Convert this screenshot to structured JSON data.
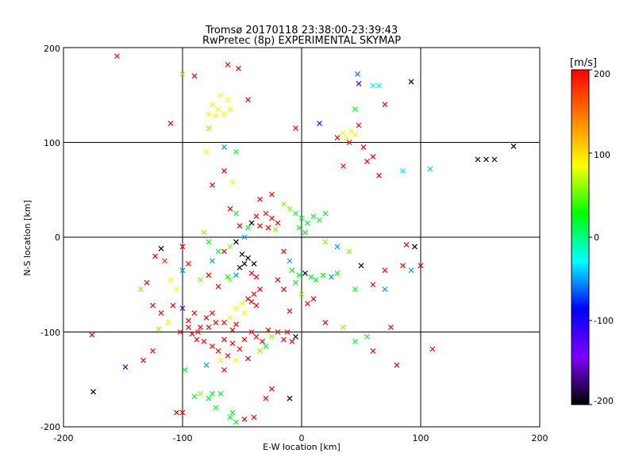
{
  "chart_data": {
    "type": "scatter",
    "title": "Tromsø 20170118 23:38:00-23:39:43",
    "subtitle": "RwPretec (8p) EXPERIMENTAL SKYMAP",
    "xlabel": "E-W location [km]",
    "ylabel": "N-S location [km]",
    "xlim": [
      -200,
      200
    ],
    "ylim": [
      -200,
      200
    ],
    "xticks": [
      "-200",
      "-100",
      "0",
      "100",
      "200"
    ],
    "yticks": [
      "-200",
      "-100",
      "0",
      "100",
      "200"
    ],
    "grid": true,
    "colorbar": {
      "label": "[m/s]",
      "range": [
        -200,
        200
      ],
      "ticks": [
        "200",
        "100",
        "0",
        "-100",
        "-200"
      ],
      "colors": [
        "#000000",
        "#7f00ff",
        "#0000ff",
        "#00ffff",
        "#00ff00",
        "#ffff00",
        "#ff8000",
        "#ff0000"
      ]
    },
    "points": [
      [
        -155,
        191,
        200,
        "x"
      ],
      [
        -118,
        -12,
        -200,
        "x"
      ],
      [
        -175,
        -163,
        -200,
        "x"
      ],
      [
        -176,
        -103,
        200,
        "x"
      ],
      [
        -148,
        -137,
        -120,
        "x"
      ],
      [
        -133,
        -130,
        200,
        "x"
      ],
      [
        -125,
        -120,
        200,
        "x"
      ],
      [
        -123,
        -20,
        200,
        "x"
      ],
      [
        -120,
        -97,
        60,
        "x"
      ],
      [
        -115,
        -25,
        180,
        "x"
      ],
      [
        -105,
        -185,
        200,
        "x"
      ],
      [
        -100,
        -185,
        200,
        "x"
      ],
      [
        -98,
        -140,
        20,
        "x"
      ],
      [
        -90,
        -168,
        20,
        "x"
      ],
      [
        -87,
        -100,
        200,
        "x"
      ],
      [
        -85,
        -165,
        60,
        "x"
      ],
      [
        -80,
        -135,
        -50,
        "x"
      ],
      [
        -78,
        -170,
        20,
        "x"
      ],
      [
        -75,
        -165,
        20,
        "x"
      ],
      [
        -72,
        -180,
        20,
        "x"
      ],
      [
        -68,
        -165,
        20,
        "x"
      ],
      [
        -65,
        -140,
        200,
        "x"
      ],
      [
        -60,
        -190,
        20,
        "x"
      ],
      [
        -58,
        -185,
        20,
        "x"
      ],
      [
        -55,
        -195,
        20,
        "x"
      ],
      [
        -48,
        -192,
        200,
        "x"
      ],
      [
        -40,
        -190,
        200,
        "x"
      ],
      [
        -30,
        -170,
        200,
        "x"
      ],
      [
        -25,
        -160,
        200,
        "x"
      ],
      [
        -10,
        -170,
        -200,
        "x"
      ],
      [
        -100,
        172,
        60,
        "x"
      ],
      [
        -90,
        170,
        200,
        "x"
      ],
      [
        -70,
        135,
        90,
        "x"
      ],
      [
        -75,
        140,
        90,
        "x"
      ],
      [
        -65,
        130,
        90,
        "x"
      ],
      [
        -60,
        135,
        90,
        "x"
      ],
      [
        -62,
        145,
        90,
        "x"
      ],
      [
        -72,
        128,
        90,
        "x"
      ],
      [
        -68,
        150,
        90,
        "x"
      ],
      [
        -78,
        130,
        90,
        "x"
      ],
      [
        -62,
        182,
        200,
        "x"
      ],
      [
        -53,
        178,
        200,
        "x"
      ],
      [
        -45,
        145,
        200,
        "x"
      ],
      [
        -65,
        95,
        -50,
        "x"
      ],
      [
        -55,
        90,
        20,
        "x"
      ],
      [
        -75,
        55,
        200,
        "x"
      ],
      [
        -65,
        70,
        200,
        "x"
      ],
      [
        -60,
        30,
        200,
        "x"
      ],
      [
        -55,
        25,
        20,
        "x"
      ],
      [
        -52,
        12,
        200,
        "x"
      ],
      [
        -48,
        0,
        -50,
        "x"
      ],
      [
        -45,
        10,
        20,
        "x"
      ],
      [
        -42,
        15,
        -200,
        "x"
      ],
      [
        -38,
        22,
        200,
        "x"
      ],
      [
        -30,
        25,
        200,
        "x"
      ],
      [
        -25,
        20,
        200,
        "x"
      ],
      [
        -20,
        15,
        200,
        "x"
      ],
      [
        -28,
        10,
        200,
        "x"
      ],
      [
        -35,
        12,
        200,
        "x"
      ],
      [
        -22,
        8,
        60,
        "x"
      ],
      [
        -55,
        -5,
        -200,
        "x"
      ],
      [
        -60,
        -10,
        60,
        "x"
      ],
      [
        -65,
        -15,
        200,
        "x"
      ],
      [
        -50,
        -18,
        -200,
        "x"
      ],
      [
        -45,
        -22,
        -200,
        "x"
      ],
      [
        -40,
        -28,
        -200,
        "x"
      ],
      [
        -48,
        -28,
        -200,
        "x"
      ],
      [
        -52,
        -32,
        -200,
        "x"
      ],
      [
        -42,
        -38,
        200,
        "x"
      ],
      [
        -38,
        -42,
        200,
        "x"
      ],
      [
        -55,
        -40,
        -50,
        "x"
      ],
      [
        -60,
        -45,
        60,
        "x"
      ],
      [
        -35,
        -55,
        200,
        "x"
      ],
      [
        -40,
        -60,
        200,
        "x"
      ],
      [
        -45,
        -65,
        200,
        "x"
      ],
      [
        -50,
        -70,
        90,
        "x"
      ],
      [
        -55,
        -75,
        90,
        "x"
      ],
      [
        -48,
        -80,
        90,
        "x"
      ],
      [
        -42,
        -68,
        200,
        "x"
      ],
      [
        -38,
        -72,
        200,
        "x"
      ],
      [
        -60,
        -85,
        90,
        "x"
      ],
      [
        -65,
        -90,
        200,
        "x"
      ],
      [
        -72,
        -90,
        200,
        "x"
      ],
      [
        -78,
        -95,
        200,
        "x"
      ],
      [
        -85,
        -95,
        200,
        "x"
      ],
      [
        -95,
        -95,
        200,
        "x"
      ],
      [
        -92,
        -102,
        200,
        "x"
      ],
      [
        -88,
        -108,
        200,
        "x"
      ],
      [
        -82,
        -110,
        200,
        "x"
      ],
      [
        -75,
        -115,
        200,
        "x"
      ],
      [
        -70,
        -120,
        200,
        "x"
      ],
      [
        -65,
        -108,
        200,
        "x"
      ],
      [
        -58,
        -112,
        200,
        "x"
      ],
      [
        -52,
        -118,
        200,
        "x"
      ],
      [
        -48,
        -108,
        200,
        "x"
      ],
      [
        -42,
        -100,
        200,
        "x"
      ],
      [
        -38,
        -105,
        200,
        "x"
      ],
      [
        -33,
        -110,
        200,
        "x"
      ],
      [
        -28,
        -98,
        200,
        "x"
      ],
      [
        -25,
        -105,
        60,
        "x"
      ],
      [
        -20,
        -100,
        200,
        "x"
      ],
      [
        -15,
        -108,
        200,
        "x"
      ],
      [
        -12,
        -100,
        200,
        "x"
      ],
      [
        -8,
        -110,
        200,
        "x"
      ],
      [
        -5,
        -105,
        -200,
        "x"
      ],
      [
        -30,
        -115,
        20,
        "x"
      ],
      [
        -35,
        -120,
        60,
        "x"
      ],
      [
        -62,
        -125,
        200,
        "x"
      ],
      [
        -68,
        -130,
        90,
        "x"
      ],
      [
        -55,
        -130,
        90,
        "x"
      ],
      [
        -45,
        -128,
        200,
        "x"
      ],
      [
        -58,
        -98,
        200,
        "x"
      ],
      [
        -55,
        -92,
        200,
        "x"
      ],
      [
        -102,
        -100,
        200,
        "x"
      ],
      [
        -112,
        -90,
        90,
        "x"
      ],
      [
        -118,
        -80,
        200,
        "x"
      ],
      [
        -125,
        -72,
        200,
        "x"
      ],
      [
        -108,
        -72,
        200,
        "x"
      ],
      [
        -100,
        -75,
        -120,
        "x"
      ],
      [
        -90,
        -80,
        200,
        "x"
      ],
      [
        -95,
        -88,
        200,
        "x"
      ],
      [
        -80,
        -85,
        200,
        "x"
      ],
      [
        -75,
        -80,
        200,
        "x"
      ],
      [
        -100,
        -35,
        -50,
        "x"
      ],
      [
        -95,
        -28,
        200,
        "x"
      ],
      [
        -85,
        -45,
        60,
        "x"
      ],
      [
        -78,
        -40,
        200,
        "x"
      ],
      [
        -70,
        -52,
        200,
        "x"
      ],
      [
        -100,
        -10,
        200,
        "x"
      ],
      [
        -105,
        -55,
        90,
        "x"
      ],
      [
        -135,
        -55,
        60,
        "x"
      ],
      [
        -130,
        -48,
        200,
        "x"
      ],
      [
        -110,
        -45,
        90,
        "x"
      ],
      [
        -62,
        -42,
        20,
        "x"
      ],
      [
        -75,
        -25,
        -50,
        "x"
      ],
      [
        -70,
        -15,
        20,
        "x"
      ],
      [
        -78,
        -5,
        20,
        "x"
      ],
      [
        -82,
        5,
        60,
        "x"
      ],
      [
        -35,
        40,
        200,
        "x"
      ],
      [
        -25,
        45,
        200,
        "x"
      ],
      [
        -15,
        35,
        60,
        "x"
      ],
      [
        -10,
        30,
        60,
        "x"
      ],
      [
        -5,
        25,
        20,
        "x"
      ],
      [
        0,
        20,
        20,
        "x"
      ],
      [
        5,
        15,
        20,
        "x"
      ],
      [
        10,
        22,
        20,
        "x"
      ],
      [
        15,
        18,
        20,
        "x"
      ],
      [
        20,
        25,
        20,
        "x"
      ],
      [
        -2,
        10,
        20,
        "x"
      ],
      [
        3,
        5,
        20,
        "x"
      ],
      [
        -8,
        -35,
        20,
        "x"
      ],
      [
        -2,
        -40,
        20,
        "x"
      ],
      [
        3,
        -38,
        -200,
        "x"
      ],
      [
        8,
        -42,
        20,
        "x"
      ],
      [
        12,
        -45,
        20,
        "x"
      ],
      [
        -5,
        -48,
        20,
        "x"
      ],
      [
        18,
        -40,
        20,
        "x"
      ],
      [
        25,
        -42,
        -50,
        "x"
      ],
      [
        30,
        -38,
        20,
        "x"
      ],
      [
        0,
        -60,
        60,
        "x"
      ],
      [
        5,
        -70,
        200,
        "x"
      ],
      [
        10,
        -65,
        200,
        "x"
      ],
      [
        -15,
        -55,
        200,
        "x"
      ],
      [
        -20,
        -45,
        200,
        "x"
      ],
      [
        -10,
        -78,
        200,
        "x"
      ],
      [
        20,
        -90,
        200,
        "x"
      ],
      [
        35,
        -95,
        60,
        "x"
      ],
      [
        45,
        -110,
        20,
        "x"
      ],
      [
        55,
        -105,
        20,
        "x"
      ],
      [
        60,
        -120,
        200,
        "x"
      ],
      [
        75,
        -95,
        200,
        "x"
      ],
      [
        80,
        -135,
        200,
        "x"
      ],
      [
        110,
        -118,
        200,
        "x"
      ],
      [
        85,
        -30,
        200,
        "x"
      ],
      [
        92,
        -35,
        -50,
        "x"
      ],
      [
        100,
        -30,
        200,
        "x"
      ],
      [
        50,
        -30,
        -200,
        "x"
      ],
      [
        60,
        -50,
        200,
        "x"
      ],
      [
        70,
        -35,
        200,
        "x"
      ],
      [
        95,
        -10,
        -200,
        "x"
      ],
      [
        88,
        -8,
        200,
        "x"
      ],
      [
        40,
        -15,
        60,
        "x"
      ],
      [
        30,
        -10,
        -50,
        "x"
      ],
      [
        20,
        -5,
        60,
        "x"
      ],
      [
        -10,
        -25,
        -50,
        "x"
      ],
      [
        -15,
        -15,
        200,
        "x"
      ],
      [
        40,
        100,
        200,
        "x"
      ],
      [
        45,
        108,
        90,
        "x"
      ],
      [
        35,
        110,
        90,
        "x"
      ],
      [
        38,
        105,
        90,
        "x"
      ],
      [
        42,
        112,
        90,
        "x"
      ],
      [
        48,
        118,
        200,
        "x"
      ],
      [
        30,
        105,
        200,
        "x"
      ],
      [
        52,
        95,
        200,
        "x"
      ],
      [
        60,
        85,
        200,
        "x"
      ],
      [
        55,
        80,
        200,
        "x"
      ],
      [
        35,
        75,
        200,
        "x"
      ],
      [
        65,
        65,
        200,
        "x"
      ],
      [
        45,
        135,
        20,
        "x"
      ],
      [
        48,
        162,
        -120,
        "x"
      ],
      [
        47,
        172,
        -60,
        "x"
      ],
      [
        65,
        160,
        -20,
        "x"
      ],
      [
        70,
        140,
        200,
        "x"
      ],
      [
        92,
        164,
        -200,
        "x"
      ],
      [
        15,
        120,
        -120,
        "x"
      ],
      [
        -5,
        115,
        200,
        "x"
      ],
      [
        60,
        160,
        -30,
        "x"
      ],
      [
        85,
        70,
        -20,
        "x"
      ],
      [
        108,
        72,
        -40,
        "x"
      ],
      [
        148,
        82,
        -200,
        "x"
      ],
      [
        155,
        82,
        -200,
        "x"
      ],
      [
        162,
        82,
        -200,
        "x"
      ],
      [
        178,
        96,
        -200,
        "x"
      ],
      [
        70,
        -55,
        -50,
        "x"
      ],
      [
        45,
        -55,
        20,
        "x"
      ],
      [
        -58,
        58,
        90,
        "x"
      ],
      [
        -110,
        120,
        200,
        "x"
      ],
      [
        -78,
        115,
        60,
        "x"
      ],
      [
        -80,
        90,
        90,
        "x"
      ]
    ]
  }
}
